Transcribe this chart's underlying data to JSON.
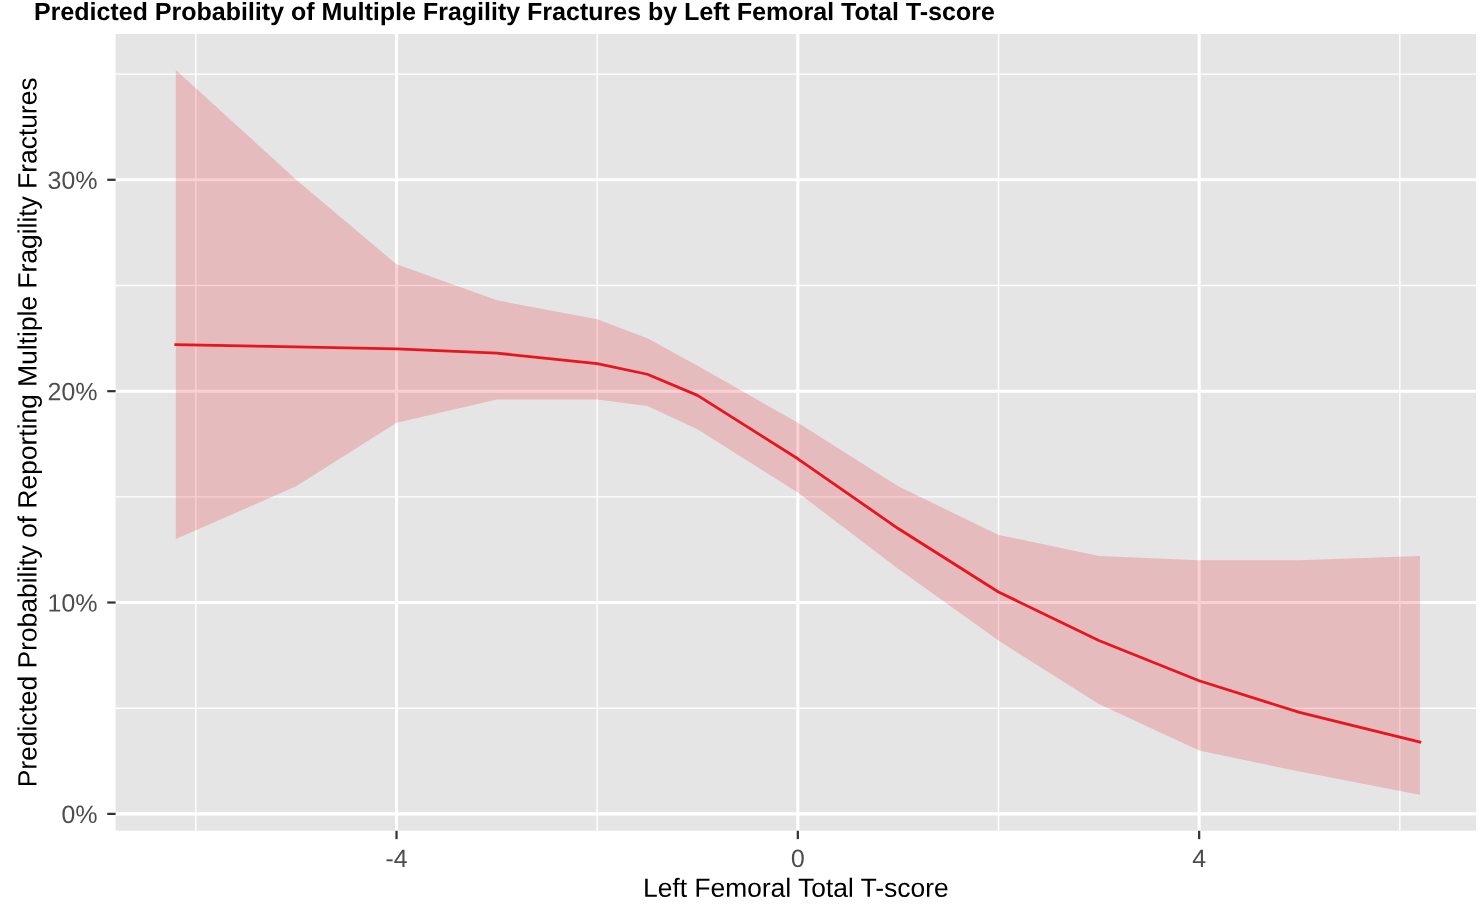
{
  "chart_data": {
    "type": "line",
    "title": "Predicted Probability of Multiple Fragility Fractures by Left Femoral Total T-score",
    "xlabel": "Left Femoral Total T-score",
    "ylabel": "Predicted Probability of Reporting Multiple Fragility Fractures",
    "x": [
      -6.2,
      -5,
      -4,
      -3,
      -2,
      -1.5,
      -1,
      0,
      1,
      2,
      3,
      4,
      5,
      6.2
    ],
    "series": [
      {
        "color": "#e8141e",
        "values": [
          22.2,
          22.1,
          22.0,
          21.8,
          21.3,
          20.8,
          19.8,
          16.8,
          13.5,
          10.5,
          8.2,
          6.3,
          4.8,
          3.4
        ],
        "upper": [
          35.2,
          30.0,
          26.0,
          24.3,
          23.4,
          22.5,
          21.2,
          18.5,
          15.5,
          13.2,
          12.2,
          12.0,
          12.0,
          12.2
        ],
        "lower": [
          13.0,
          15.5,
          18.5,
          19.6,
          19.6,
          19.3,
          18.2,
          15.2,
          11.6,
          8.2,
          5.2,
          3.0,
          2.0,
          0.9
        ]
      }
    ],
    "xlim": [
      -6.8,
      6.76
    ],
    "ylim": [
      -0.8,
      36.9
    ],
    "xticks": [
      {
        "value": -6,
        "label": null
      },
      -4,
      {
        "value": -2,
        "label": null
      },
      0,
      {
        "value": 2,
        "label": null
      },
      4,
      {
        "value": 6,
        "label": null
      }
    ],
    "yticks": [
      {
        "value": 0,
        "label": "0%"
      },
      {
        "value": 5,
        "label": null
      },
      {
        "value": 10,
        "label": "10%"
      },
      {
        "value": 15,
        "label": null
      },
      {
        "value": 20,
        "label": "20%"
      },
      {
        "value": 25,
        "label": null
      },
      {
        "value": 30,
        "label": "30%"
      },
      {
        "value": 35,
        "label": null
      }
    ],
    "grid": true,
    "legend": false
  }
}
